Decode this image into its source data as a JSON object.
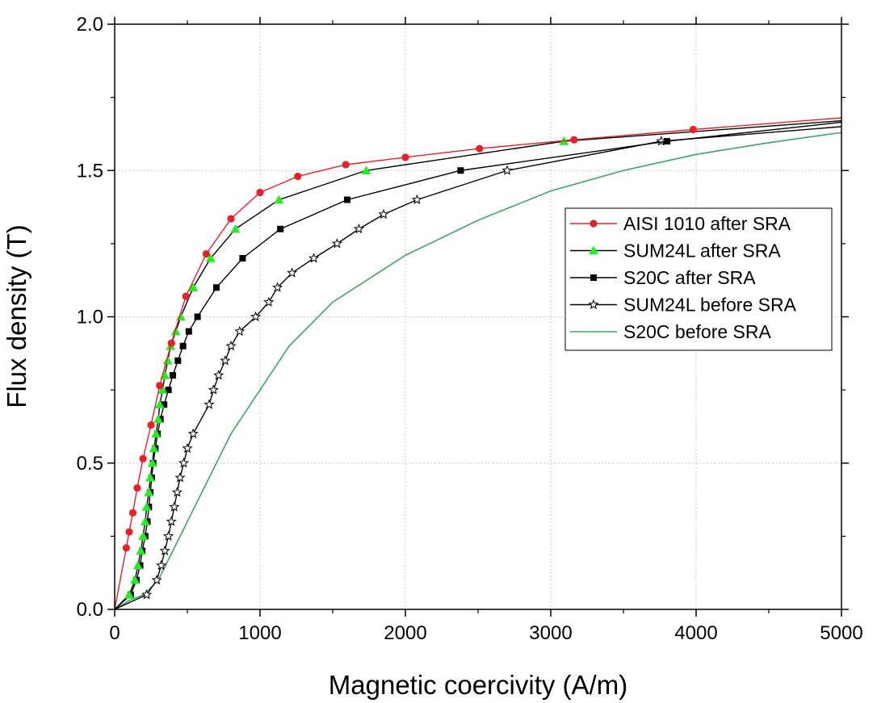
{
  "chart_data": {
    "type": "line",
    "title": "",
    "xlabel": "Magnetic coercivity (A/m)",
    "ylabel": "Flux density (T)",
    "xlim": [
      0,
      5000
    ],
    "ylim": [
      0,
      2.0
    ],
    "x_ticks": [
      "0",
      "1000",
      "2000",
      "3000",
      "4000",
      "5000"
    ],
    "y_ticks": [
      "0.0",
      "0.5",
      "1.0",
      "1.5",
      "2.0"
    ],
    "grid": true,
    "legend_position": "right",
    "series": [
      {
        "name": "AISI 1010 after SRA",
        "color": "#e8202a",
        "marker": "circle",
        "points": [
          [
            0,
            0
          ],
          [
            80,
            0.21
          ],
          [
            100,
            0.265
          ],
          [
            125,
            0.33
          ],
          [
            155,
            0.415
          ],
          [
            195,
            0.515
          ],
          [
            250,
            0.63
          ],
          [
            310,
            0.765
          ],
          [
            390,
            0.91
          ],
          [
            490,
            1.07
          ],
          [
            630,
            1.215
          ],
          [
            800,
            1.335
          ],
          [
            1000,
            1.425
          ],
          [
            1260,
            1.48
          ],
          [
            1590,
            1.52
          ],
          [
            2000,
            1.545
          ],
          [
            2510,
            1.575
          ],
          [
            3160,
            1.605
          ],
          [
            3980,
            1.64
          ],
          [
            5000,
            1.68
          ]
        ]
      },
      {
        "name": "SUM24L after SRA",
        "color": "#000000",
        "marker": "triangle",
        "marker_color": "#22ee22",
        "points": [
          [
            0,
            0
          ],
          [
            100,
            0.05
          ],
          [
            140,
            0.1
          ],
          [
            160,
            0.15
          ],
          [
            180,
            0.2
          ],
          [
            195,
            0.25
          ],
          [
            210,
            0.3
          ],
          [
            220,
            0.35
          ],
          [
            235,
            0.4
          ],
          [
            245,
            0.45
          ],
          [
            260,
            0.5
          ],
          [
            270,
            0.55
          ],
          [
            285,
            0.6
          ],
          [
            300,
            0.65
          ],
          [
            310,
            0.7
          ],
          [
            330,
            0.75
          ],
          [
            345,
            0.8
          ],
          [
            365,
            0.85
          ],
          [
            385,
            0.9
          ],
          [
            420,
            0.95
          ],
          [
            455,
            1.0
          ],
          [
            540,
            1.1
          ],
          [
            660,
            1.2
          ],
          [
            830,
            1.3
          ],
          [
            1130,
            1.4
          ],
          [
            1730,
            1.5
          ],
          [
            3090,
            1.6
          ],
          [
            5000,
            1.67
          ]
        ]
      },
      {
        "name": "S20C after SRA",
        "color": "#000000",
        "marker": "square",
        "points": [
          [
            0,
            0
          ],
          [
            110,
            0.05
          ],
          [
            150,
            0.1
          ],
          [
            175,
            0.15
          ],
          [
            190,
            0.2
          ],
          [
            210,
            0.25
          ],
          [
            225,
            0.3
          ],
          [
            235,
            0.35
          ],
          [
            245,
            0.4
          ],
          [
            255,
            0.45
          ],
          [
            265,
            0.5
          ],
          [
            280,
            0.55
          ],
          [
            295,
            0.6
          ],
          [
            315,
            0.65
          ],
          [
            340,
            0.7
          ],
          [
            370,
            0.75
          ],
          [
            400,
            0.8
          ],
          [
            435,
            0.85
          ],
          [
            470,
            0.9
          ],
          [
            510,
            0.95
          ],
          [
            570,
            1.0
          ],
          [
            700,
            1.1
          ],
          [
            880,
            1.2
          ],
          [
            1140,
            1.3
          ],
          [
            1600,
            1.4
          ],
          [
            2380,
            1.5
          ],
          [
            3800,
            1.6
          ],
          [
            5000,
            1.665
          ]
        ]
      },
      {
        "name": "SUM24L before SRA",
        "color": "#000000",
        "marker": "star",
        "points": [
          [
            0,
            0
          ],
          [
            220,
            0.05
          ],
          [
            290,
            0.1
          ],
          [
            320,
            0.15
          ],
          [
            345,
            0.2
          ],
          [
            370,
            0.25
          ],
          [
            390,
            0.3
          ],
          [
            410,
            0.35
          ],
          [
            430,
            0.4
          ],
          [
            450,
            0.45
          ],
          [
            475,
            0.5
          ],
          [
            500,
            0.55
          ],
          [
            540,
            0.6
          ],
          [
            650,
            0.7
          ],
          [
            680,
            0.75
          ],
          [
            715,
            0.8
          ],
          [
            760,
            0.85
          ],
          [
            800,
            0.9
          ],
          [
            860,
            0.95
          ],
          [
            970,
            1.0
          ],
          [
            1060,
            1.05
          ],
          [
            1120,
            1.1
          ],
          [
            1220,
            1.15
          ],
          [
            1370,
            1.2
          ],
          [
            1530,
            1.25
          ],
          [
            1680,
            1.3
          ],
          [
            1850,
            1.35
          ],
          [
            2080,
            1.4
          ],
          [
            2700,
            1.5
          ],
          [
            3760,
            1.6
          ],
          [
            5000,
            1.65
          ]
        ]
      },
      {
        "name": "S20C before SRA",
        "color": "#3aa860",
        "marker": "none",
        "points": [
          [
            0,
            0
          ],
          [
            100,
            0.03
          ],
          [
            200,
            0.05
          ],
          [
            300,
            0.1
          ],
          [
            400,
            0.2
          ],
          [
            500,
            0.3
          ],
          [
            600,
            0.4
          ],
          [
            700,
            0.5
          ],
          [
            800,
            0.6
          ],
          [
            1000,
            0.75
          ],
          [
            1200,
            0.9
          ],
          [
            1500,
            1.05
          ],
          [
            2000,
            1.21
          ],
          [
            2500,
            1.33
          ],
          [
            3000,
            1.43
          ],
          [
            3500,
            1.5
          ],
          [
            4000,
            1.555
          ],
          [
            4500,
            1.595
          ],
          [
            5000,
            1.63
          ]
        ]
      }
    ]
  }
}
